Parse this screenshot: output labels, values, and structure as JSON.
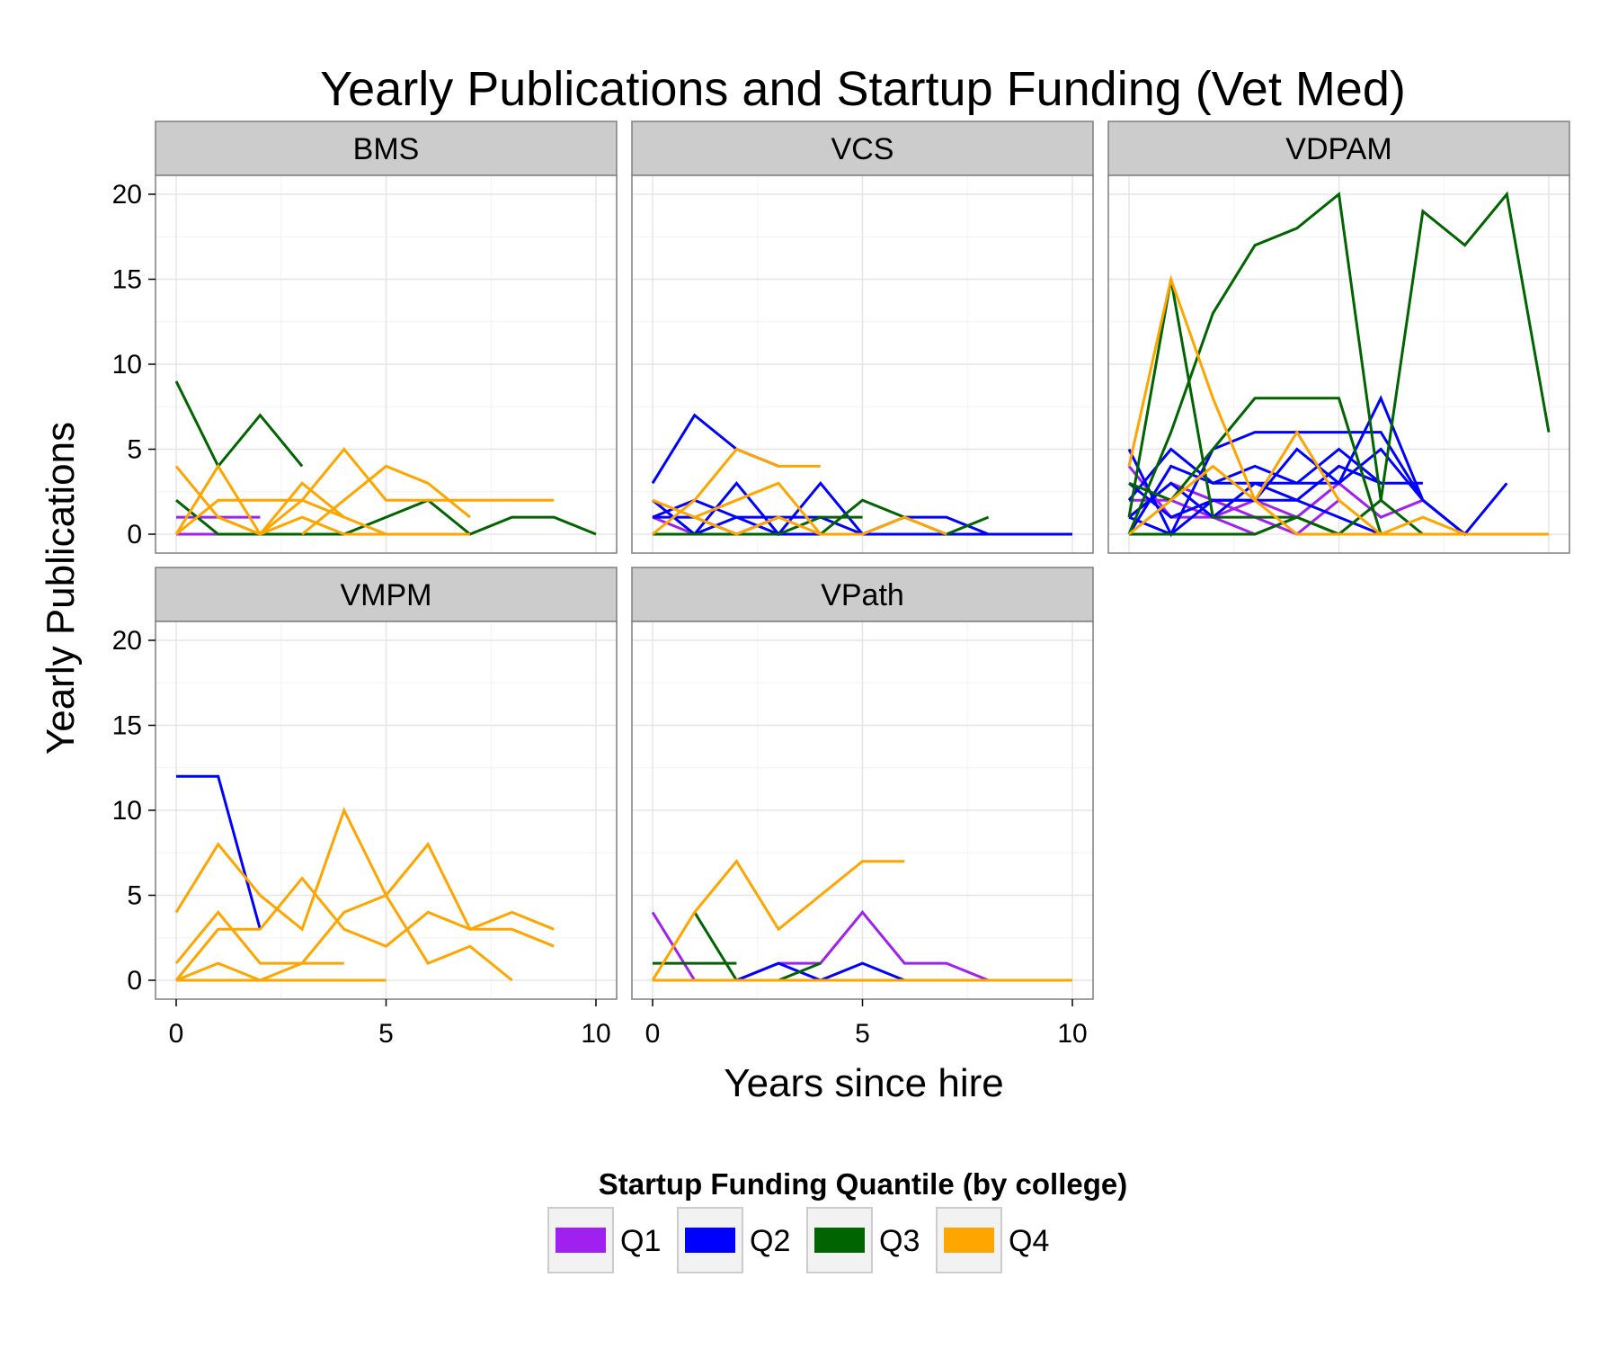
{
  "chart_data": {
    "type": "line",
    "title": "Yearly Publications and Startup Funding (Vet Med)",
    "xlabel": "Years since hire",
    "ylabel": "Yearly Publications",
    "xlim": [
      0,
      10
    ],
    "ylim": [
      0,
      20
    ],
    "x_ticks": [
      "0",
      "5",
      "10"
    ],
    "y_ticks": [
      "0",
      "5",
      "10",
      "15",
      "20"
    ],
    "grid": true,
    "legend": {
      "title": "Startup Funding Quantile (by college)",
      "position": "bottom",
      "entries": [
        {
          "label": "Q1",
          "color": "#a020f0"
        },
        {
          "label": "Q2",
          "color": "#0000ff"
        },
        {
          "label": "Q3",
          "color": "#006400"
        },
        {
          "label": "Q4",
          "color": "#ffa500"
        }
      ]
    },
    "panels": [
      {
        "label": "BMS",
        "lines": [
          {
            "group": "Q1",
            "x": [
              0,
              1,
              2
            ],
            "y": [
              1,
              1,
              1
            ]
          },
          {
            "group": "Q1",
            "x": [
              0,
              1
            ],
            "y": [
              0,
              0
            ]
          },
          {
            "group": "Q3",
            "x": [
              0,
              1,
              2,
              3
            ],
            "y": [
              9,
              4,
              7,
              4
            ]
          },
          {
            "group": "Q3",
            "x": [
              0,
              1,
              2,
              3,
              4,
              5,
              6,
              7,
              8,
              9,
              10
            ],
            "y": [
              2,
              0,
              0,
              0,
              0,
              1,
              2,
              0,
              1,
              1,
              0
            ]
          },
          {
            "group": "Q4",
            "x": [
              0,
              1,
              2
            ],
            "y": [
              4,
              1,
              0
            ]
          },
          {
            "group": "Q4",
            "x": [
              0,
              1,
              2,
              3,
              4
            ],
            "y": [
              0,
              4,
              0,
              1,
              0
            ]
          },
          {
            "group": "Q4",
            "x": [
              0,
              1,
              2,
              3,
              4,
              5
            ],
            "y": [
              0,
              2,
              2,
              2,
              1,
              0
            ]
          },
          {
            "group": "Q4",
            "x": [
              1,
              2,
              3,
              4
            ],
            "y": [
              1,
              0,
              3,
              1
            ]
          },
          {
            "group": "Q4",
            "x": [
              2,
              3,
              4,
              5,
              6,
              7,
              8,
              9
            ],
            "y": [
              0,
              2,
              5,
              2,
              2,
              2,
              2,
              2
            ]
          },
          {
            "group": "Q4",
            "x": [
              3,
              4,
              5,
              6,
              7
            ],
            "y": [
              0,
              2,
              4,
              3,
              1
            ]
          },
          {
            "group": "Q4",
            "x": [
              4,
              5,
              6,
              7
            ],
            "y": [
              0,
              0,
              0,
              0
            ]
          }
        ]
      },
      {
        "label": "VCS",
        "lines": [
          {
            "group": "Q1",
            "x": [
              0,
              1
            ],
            "y": [
              1,
              0
            ]
          },
          {
            "group": "Q2",
            "x": [
              0,
              1,
              2,
              3
            ],
            "y": [
              3,
              7,
              5,
              4
            ]
          },
          {
            "group": "Q2",
            "x": [
              0,
              1,
              2,
              3
            ],
            "y": [
              1,
              2,
              1,
              1
            ]
          },
          {
            "group": "Q2",
            "x": [
              0,
              1,
              2,
              3,
              4,
              5,
              6,
              7,
              8,
              9,
              10
            ],
            "y": [
              0,
              0,
              3,
              0,
              3,
              0,
              1,
              1,
              0,
              0,
              0
            ]
          },
          {
            "group": "Q2",
            "x": [
              0,
              1,
              2,
              3,
              4,
              5,
              6,
              7,
              8,
              9,
              10
            ],
            "y": [
              1,
              1,
              0,
              1,
              1,
              0,
              0,
              0,
              0,
              0,
              0
            ]
          },
          {
            "group": "Q2",
            "x": [
              0,
              1,
              2,
              3,
              4,
              5,
              6,
              7
            ],
            "y": [
              2,
              0,
              1,
              0,
              0,
              0,
              0,
              0
            ]
          },
          {
            "group": "Q3",
            "x": [
              0,
              1,
              2,
              3,
              4,
              5
            ],
            "y": [
              0,
              0,
              0,
              0,
              1,
              1
            ]
          },
          {
            "group": "Q3",
            "x": [
              4,
              5,
              6,
              7,
              8
            ],
            "y": [
              0,
              2,
              1,
              0,
              1
            ]
          },
          {
            "group": "Q4",
            "x": [
              0,
              1,
              2,
              3,
              4
            ],
            "y": [
              0,
              2,
              5,
              4,
              4
            ]
          },
          {
            "group": "Q4",
            "x": [
              0,
              1,
              2,
              3,
              4
            ],
            "y": [
              2,
              1,
              2,
              3,
              0
            ]
          },
          {
            "group": "Q4",
            "x": [
              1,
              2,
              3,
              4,
              5,
              6,
              7
            ],
            "y": [
              1,
              0,
              1,
              0,
              0,
              1,
              0
            ]
          }
        ]
      },
      {
        "label": "VDPAM",
        "lines": [
          {
            "group": "Q1",
            "x": [
              0,
              1,
              2,
              3,
              4
            ],
            "y": [
              4,
              1,
              1,
              0,
              1
            ]
          },
          {
            "group": "Q1",
            "x": [
              0,
              1,
              2,
              3,
              4,
              5,
              6,
              7
            ],
            "y": [
              2,
              2,
              1,
              2,
              1,
              3,
              1,
              2
            ]
          },
          {
            "group": "Q1",
            "x": [
              0,
              1,
              2,
              3,
              4,
              5
            ],
            "y": [
              1,
              3,
              2,
              1,
              0,
              2
            ]
          },
          {
            "group": "Q2",
            "x": [
              0,
              1,
              2,
              3,
              4,
              5,
              6,
              7,
              8,
              9
            ],
            "y": [
              5,
              0,
              5,
              6,
              6,
              6,
              6,
              2,
              0,
              3
            ]
          },
          {
            "group": "Q2",
            "x": [
              0,
              1,
              2,
              3,
              4,
              5,
              6,
              7
            ],
            "y": [
              2,
              5,
              3,
              4,
              3,
              3,
              8,
              2
            ]
          },
          {
            "group": "Q2",
            "x": [
              0,
              1,
              2,
              3,
              4,
              5,
              6,
              7
            ],
            "y": [
              1,
              3,
              1,
              3,
              2,
              4,
              3,
              3
            ]
          },
          {
            "group": "Q2",
            "x": [
              0,
              1,
              2,
              3,
              4,
              5,
              6
            ],
            "y": [
              0,
              4,
              3,
              3,
              3,
              5,
              3
            ]
          },
          {
            "group": "Q2",
            "x": [
              0,
              1,
              2,
              3,
              4,
              5,
              6,
              7,
              8,
              9
            ],
            "y": [
              3,
              1,
              2,
              2,
              5,
              3,
              5,
              2,
              0,
              0
            ]
          },
          {
            "group": "Q2",
            "x": [
              0,
              1,
              2,
              3,
              4,
              5,
              6,
              7
            ],
            "y": [
              1,
              0,
              2,
              2,
              2,
              1,
              0,
              0
            ]
          },
          {
            "group": "Q3",
            "x": [
              0,
              1,
              2,
              3,
              4,
              5,
              6,
              7,
              8,
              9,
              10
            ],
            "y": [
              0,
              6,
              13,
              17,
              18,
              20,
              2,
              19,
              17,
              20,
              6
            ]
          },
          {
            "group": "Q3",
            "x": [
              0,
              1,
              2,
              3,
              4,
              5,
              6,
              7
            ],
            "y": [
              1,
              15,
              1,
              1,
              1,
              0,
              2,
              0
            ]
          },
          {
            "group": "Q3",
            "x": [
              0,
              1,
              2,
              3,
              4,
              5,
              6
            ],
            "y": [
              3,
              2,
              5,
              8,
              8,
              8,
              0
            ]
          },
          {
            "group": "Q3",
            "x": [
              0,
              1,
              2,
              3,
              4,
              5,
              6,
              7,
              8,
              9,
              10
            ],
            "y": [
              0,
              0,
              0,
              0,
              1,
              0,
              0,
              0,
              0,
              0,
              0
            ]
          },
          {
            "group": "Q4",
            "x": [
              0,
              1,
              2,
              3,
              4,
              5,
              6,
              7,
              8,
              9,
              10
            ],
            "y": [
              4,
              15,
              8,
              2,
              6,
              2,
              0,
              1,
              0,
              0,
              0
            ]
          },
          {
            "group": "Q4",
            "x": [
              0,
              1,
              2,
              3,
              4,
              5,
              6,
              7,
              8,
              9,
              10
            ],
            "y": [
              0,
              2,
              4,
              2,
              0,
              0,
              0,
              0,
              0,
              0,
              0
            ]
          }
        ]
      },
      {
        "label": "VMPM",
        "lines": [
          {
            "group": "Q2",
            "x": [
              0,
              1,
              2
            ],
            "y": [
              12,
              12,
              3
            ]
          },
          {
            "group": "Q3",
            "x": [
              0,
              1,
              2
            ],
            "y": [
              0,
              0,
              0
            ]
          },
          {
            "group": "Q4",
            "x": [
              0,
              1,
              2,
              3,
              4,
              5,
              6,
              7,
              8
            ],
            "y": [
              4,
              8,
              5,
              3,
              10,
              5,
              1,
              2,
              0
            ]
          },
          {
            "group": "Q4",
            "x": [
              0,
              1,
              2,
              3,
              4,
              5,
              6,
              7,
              8,
              9
            ],
            "y": [
              1,
              4,
              1,
              1,
              4,
              5,
              8,
              3,
              3,
              2
            ]
          },
          {
            "group": "Q4",
            "x": [
              0,
              1,
              2,
              3,
              4,
              5,
              6,
              7,
              8,
              9
            ],
            "y": [
              0,
              3,
              3,
              6,
              3,
              2,
              4,
              3,
              4,
              3
            ]
          },
          {
            "group": "Q4",
            "x": [
              0,
              1,
              2,
              3,
              4
            ],
            "y": [
              0,
              1,
              0,
              1,
              1
            ]
          },
          {
            "group": "Q4",
            "x": [
              0,
              1,
              2,
              3,
              4,
              5
            ],
            "y": [
              0,
              0,
              0,
              0,
              0,
              0
            ]
          }
        ]
      },
      {
        "label": "VPath",
        "lines": [
          {
            "group": "Q1",
            "x": [
              0,
              1,
              2,
              3,
              4,
              5,
              6,
              7,
              8,
              9,
              10
            ],
            "y": [
              4,
              0,
              0,
              1,
              1,
              4,
              1,
              1,
              0,
              0,
              0
            ]
          },
          {
            "group": "Q2",
            "x": [
              0,
              1,
              2,
              3,
              4,
              5,
              6,
              7,
              8,
              9,
              10
            ],
            "y": [
              0,
              0,
              0,
              1,
              0,
              1,
              0,
              0,
              0,
              0,
              0
            ]
          },
          {
            "group": "Q3",
            "x": [
              0,
              1,
              2
            ],
            "y": [
              1,
              1,
              1
            ]
          },
          {
            "group": "Q3",
            "x": [
              1,
              2,
              3,
              4
            ],
            "y": [
              4,
              0,
              0,
              1
            ]
          },
          {
            "group": "Q4",
            "x": [
              0,
              1,
              2,
              3,
              4,
              5,
              6
            ],
            "y": [
              0,
              4,
              7,
              3,
              5,
              7,
              7
            ]
          },
          {
            "group": "Q4",
            "x": [
              0,
              1,
              2,
              3,
              4,
              5,
              6,
              7,
              8,
              9,
              10
            ],
            "y": [
              0,
              0,
              0,
              0,
              0,
              0,
              0,
              0,
              0,
              0,
              0
            ]
          }
        ]
      }
    ]
  }
}
